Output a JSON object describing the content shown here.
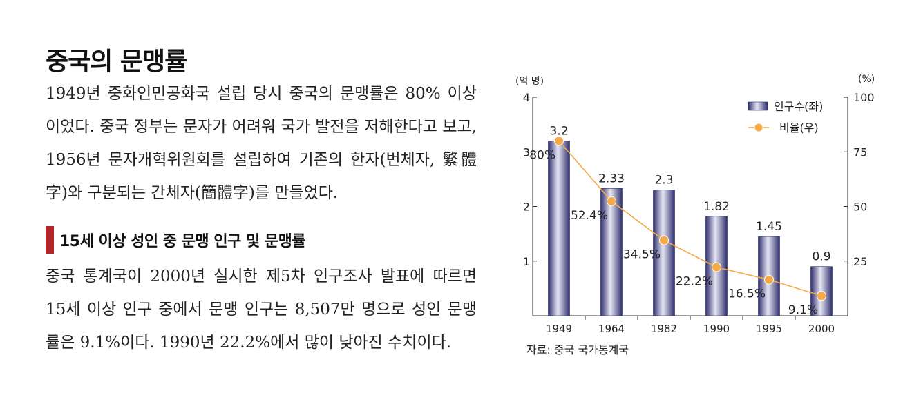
{
  "title": "중국의 문맹률",
  "paragraph1": "1949년 중화인민공화국 설립 당시 중국의 문맹률은 80% 이상이었다. 중국 정부는 문자가 어려워 국가 발전을 저해한다고 보고, 1956년 문자개혁위원회를 설립하여 기존의 한자(번체자, 繁體字)와 구분되는 간체자(簡體字)를 만들었다.",
  "subheading": "15세 이상 성인 중 문맹 인구 및 문맹률",
  "paragraph2": "중국 통계국이 2000년 실시한 제5차 인구조사 발표에 따르면 15세 이상 인구 중에서 문맹 인구는 8,507만 명으로 성인 문맹률은 9.1%이다. 1990년 22.2%에서 많이 낮아진 수치이다.",
  "source": "자료: 중국 국가통계국",
  "chart_data": {
    "type": "bar",
    "categories": [
      "1949",
      "1964",
      "1982",
      "1990",
      "1995",
      "2000"
    ],
    "series": [
      {
        "name": "인구수(좌)",
        "type": "bar",
        "axis": "left",
        "values": [
          3.2,
          2.33,
          2.3,
          1.82,
          1.45,
          0.9
        ],
        "labels": [
          "3.2",
          "2.33",
          "2.3",
          "1.82",
          "1.45",
          "0.9"
        ],
        "color": "#3a3a7a"
      },
      {
        "name": "비율(우)",
        "type": "line",
        "axis": "right",
        "values": [
          80,
          52.4,
          34.5,
          22.2,
          16.5,
          9.1
        ],
        "labels": [
          "80%",
          "52.4%",
          "34.5%",
          "22.2%",
          "16.5%",
          "9.1%"
        ],
        "color": "#f5a947"
      }
    ],
    "y_left": {
      "unit": "(억 명)",
      "range": [
        0,
        4
      ],
      "ticks": [
        "1",
        "2",
        "3",
        "4"
      ],
      "tick_values": [
        1,
        2,
        3,
        4
      ]
    },
    "y_right": {
      "unit": "(%)",
      "range": [
        0,
        100
      ],
      "ticks": [
        "25",
        "50",
        "75",
        "100"
      ],
      "tick_values": [
        25,
        50,
        75,
        100
      ]
    },
    "legend_position": "top-right",
    "grid": false
  }
}
